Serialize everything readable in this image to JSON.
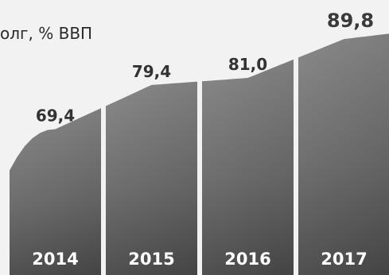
{
  "chart_data": {
    "type": "bar",
    "title": "олг, % ВВП",
    "categories": [
      "2014",
      "2015",
      "2016",
      "2017"
    ],
    "values": [
      69.4,
      79.4,
      81.0,
      89.8
    ],
    "value_labels": [
      "69,4",
      "79,4",
      "81,0",
      "89,8"
    ],
    "ylim": [
      40,
      90
    ],
    "grid": false,
    "legend": "none",
    "colors": {
      "bar_top": "#7a7a7a",
      "bar_bottom": "#4e4e4e",
      "background": "#f2f2f2",
      "label_text": "#333333",
      "tick_text": "#ffffff"
    }
  }
}
